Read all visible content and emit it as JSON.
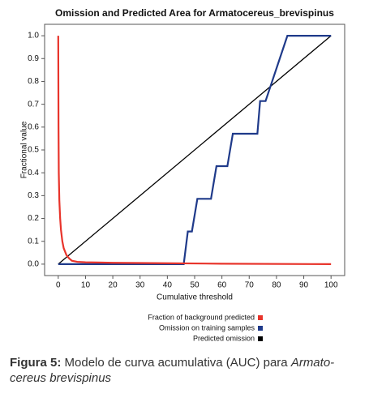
{
  "chart_data": {
    "type": "line",
    "title": "Omission and Predicted Area for Armatocereus_brevispinus",
    "xlabel": "Cumulative threshold",
    "ylabel": "Fractional value",
    "xlim": [
      -5,
      105
    ],
    "ylim": [
      -0.05,
      1.05
    ],
    "xticks": [
      0,
      10,
      20,
      30,
      40,
      50,
      60,
      70,
      80,
      90,
      100
    ],
    "yticks": [
      {
        "value": 0,
        "label": "0.0"
      },
      0.1,
      0.2,
      0.3,
      0.4,
      0.5,
      0.6,
      0.7,
      0.8,
      0.9,
      {
        "value": 1,
        "label": "1.0"
      }
    ],
    "series": [
      {
        "name": "Fraction of background predicted",
        "color": "#e8342b",
        "x": [
          0,
          0.1,
          0.2,
          0.4,
          0.7,
          1,
          1.5,
          2,
          3,
          4,
          5,
          7,
          10,
          20,
          30,
          60,
          100
        ],
        "values": [
          1.0,
          0.6,
          0.4,
          0.28,
          0.2,
          0.15,
          0.1,
          0.07,
          0.04,
          0.025,
          0.015,
          0.01,
          0.008,
          0.006,
          0.005,
          0.002,
          0
        ]
      },
      {
        "name": "Omission on training samples",
        "color": "#1f3a8a",
        "x": [
          0,
          30,
          46,
          47.5,
          49,
          51,
          56,
          58,
          62,
          64,
          73,
          74,
          76,
          84,
          100
        ],
        "values": [
          0,
          0,
          0,
          0.143,
          0.143,
          0.286,
          0.286,
          0.429,
          0.429,
          0.571,
          0.571,
          0.714,
          0.714,
          1.0,
          1.0
        ]
      },
      {
        "name": "Predicted omission",
        "color": "#000000",
        "x": [
          0,
          100
        ],
        "values": [
          0,
          1
        ]
      }
    ]
  },
  "caption": {
    "label": "Figura 5:",
    "text": " Modelo de curva acumulativa (AUC) para ",
    "species_1": "Armato-",
    "species_2": "cereus brevispinus"
  }
}
